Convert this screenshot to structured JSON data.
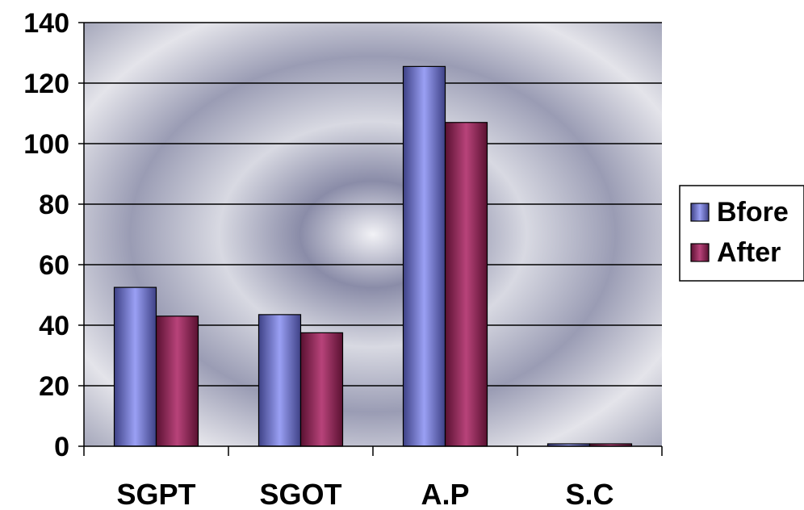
{
  "chart_data": {
    "type": "bar",
    "categories": [
      "SGPT",
      "SGOT",
      "A.P",
      "S.C"
    ],
    "series": [
      {
        "name": "Bfore",
        "values": [
          52.5,
          43.5,
          125.5,
          0.8
        ],
        "color": "#6b6fb8"
      },
      {
        "name": "After",
        "values": [
          43,
          37.5,
          107,
          0.8
        ],
        "color": "#8a2450"
      }
    ],
    "ylim": [
      0,
      140
    ],
    "yticks": [
      0,
      20,
      40,
      60,
      80,
      100,
      120,
      140
    ],
    "grid": true,
    "legend_position": "right",
    "title": "",
    "xlabel": "",
    "ylabel": ""
  }
}
